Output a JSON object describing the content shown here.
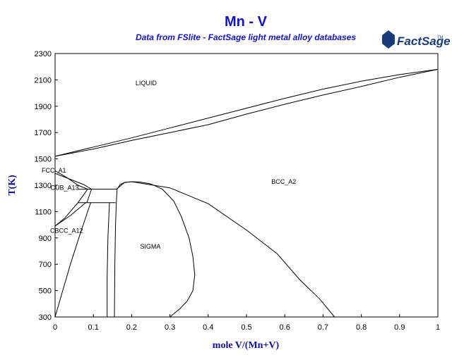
{
  "chart_data": {
    "type": "line",
    "title": "Mn - V",
    "subtitle": "Data from FSlite - FactSage light metal alloy databases",
    "logo_text": "FactSage",
    "logo_tm": "TM",
    "xlabel": "mole V/(Mn+V)",
    "ylabel": "T(K)",
    "xlim": [
      0,
      1
    ],
    "ylim": [
      300,
      2300
    ],
    "xticks": [
      "0",
      "0.1",
      "0.2",
      "0.3",
      "0.4",
      "0.5",
      "0.6",
      "0.7",
      "0.8",
      "0.9",
      "1"
    ],
    "yticks": [
      "300",
      "500",
      "700",
      "900",
      "1100",
      "1300",
      "1500",
      "1700",
      "1900",
      "2100",
      "2300"
    ],
    "grid": false,
    "phase_labels": [
      {
        "text": "LIQUID",
        "x": 0.21,
        "y": 2060
      },
      {
        "text": "BCC_A2",
        "x": 0.565,
        "y": 1310
      },
      {
        "text": "FCC_A1",
        "x": -0.035,
        "y": 1395
      },
      {
        "text": "CUB_A13",
        "x": -0.012,
        "y": 1265
      },
      {
        "text": "CBCC_A12",
        "x": -0.013,
        "y": 940
      },
      {
        "text": "SIGMA",
        "x": 0.222,
        "y": 820
      }
    ],
    "series": [
      {
        "values": [
          [
            0,
            1520
          ],
          [
            0.1,
            1575
          ],
          [
            0.2,
            1640
          ],
          [
            0.3,
            1700
          ],
          [
            0.4,
            1760
          ],
          [
            0.5,
            1840
          ],
          [
            0.6,
            1915
          ],
          [
            0.7,
            1985
          ],
          [
            0.8,
            2050
          ],
          [
            0.9,
            2120
          ],
          [
            1,
            2180
          ]
        ]
      },
      {
        "values": [
          [
            0,
            1520
          ],
          [
            0.1,
            1590
          ],
          [
            0.2,
            1660
          ],
          [
            0.3,
            1735
          ],
          [
            0.4,
            1810
          ],
          [
            0.5,
            1885
          ],
          [
            0.6,
            1960
          ],
          [
            0.7,
            2030
          ],
          [
            0.8,
            2090
          ],
          [
            0.9,
            2140
          ],
          [
            1,
            2180
          ]
        ]
      },
      {
        "values": [
          [
            0,
            1410
          ],
          [
            0.03,
            1360
          ],
          [
            0.06,
            1300
          ],
          [
            0.085,
            1270
          ]
        ]
      },
      {
        "values": [
          [
            0,
            1390
          ],
          [
            0.04,
            1345
          ],
          [
            0.075,
            1305
          ],
          [
            0.095,
            1270
          ]
        ]
      },
      {
        "values": [
          [
            0.06,
            1270
          ],
          [
            0.16,
            1270
          ]
        ]
      },
      {
        "values": [
          [
            0.085,
            1270
          ],
          [
            0.06,
            1168
          ]
        ]
      },
      {
        "values": [
          [
            0.095,
            1270
          ],
          [
            0.083,
            1168
          ]
        ]
      },
      {
        "values": [
          [
            0.06,
            1168
          ],
          [
            0.158,
            1168
          ]
        ]
      },
      {
        "values": [
          [
            0,
            990
          ],
          [
            0.025,
            1050
          ],
          [
            0.06,
            1168
          ]
        ]
      },
      {
        "values": [
          [
            0,
            990
          ],
          [
            0.04,
            1070
          ],
          [
            0.08,
            1168
          ]
        ]
      },
      {
        "values": [
          [
            0,
            300
          ],
          [
            0.02,
            500
          ],
          [
            0.04,
            700
          ],
          [
            0.062,
            900
          ],
          [
            0.085,
            1100
          ],
          [
            0.093,
            1168
          ]
        ]
      },
      {
        "values": [
          [
            0.136,
            300
          ],
          [
            0.136,
            600
          ],
          [
            0.138,
            900
          ],
          [
            0.142,
            1168
          ]
        ]
      },
      {
        "values": [
          [
            0.155,
            300
          ],
          [
            0.156,
            700
          ],
          [
            0.158,
            1000
          ],
          [
            0.16,
            1168
          ],
          [
            0.162,
            1270
          ],
          [
            0.17,
            1305
          ],
          [
            0.18,
            1320
          ],
          [
            0.2,
            1327
          ]
        ]
      },
      {
        "values": [
          [
            0.16,
            1270
          ],
          [
            0.182,
            1322
          ],
          [
            0.2,
            1327
          ],
          [
            0.22,
            1325
          ],
          [
            0.25,
            1310
          ],
          [
            0.28,
            1270
          ],
          [
            0.31,
            1180
          ],
          [
            0.33,
            1060
          ],
          [
            0.35,
            900
          ],
          [
            0.36,
            760
          ],
          [
            0.365,
            620
          ],
          [
            0.36,
            500
          ],
          [
            0.345,
            420
          ],
          [
            0.325,
            360
          ],
          [
            0.3,
            300
          ]
        ]
      },
      {
        "values": [
          [
            0.2,
            1327
          ],
          [
            0.3,
            1280
          ],
          [
            0.4,
            1160
          ],
          [
            0.5,
            960
          ],
          [
            0.58,
            780
          ],
          [
            0.64,
            580
          ],
          [
            0.69,
            440
          ],
          [
            0.73,
            300
          ]
        ]
      }
    ]
  }
}
